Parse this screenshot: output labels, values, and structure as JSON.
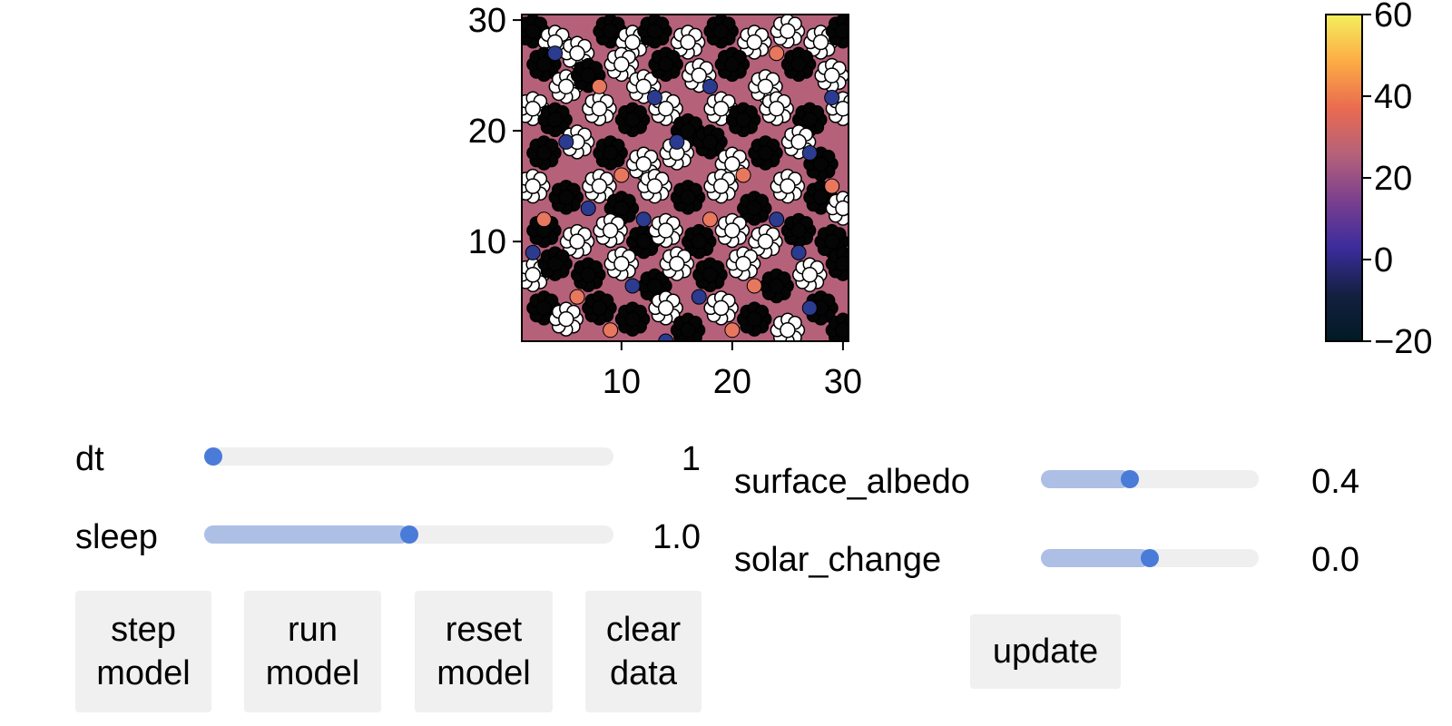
{
  "chart_data": [
    {
      "type": "scatter",
      "title": "",
      "xlabel": "",
      "ylabel": "",
      "xlim": [
        1,
        30.5
      ],
      "ylim": [
        1,
        30.5
      ],
      "xticks": [
        "10",
        "20",
        "30"
      ],
      "yticks": [
        "10",
        "20",
        "30"
      ],
      "xtick_values": [
        10,
        20,
        30
      ],
      "ytick_values": [
        10,
        20,
        30
      ],
      "background_color": "#b5617a",
      "grid": false,
      "legend": "none",
      "series": [
        {
          "marker": "daisy-flower",
          "points": [
            [
              2,
              29,
              "black"
            ],
            [
              4,
              28,
              "white"
            ],
            [
              6,
              27,
              "white"
            ],
            [
              9,
              29,
              "black"
            ],
            [
              11,
              28,
              "white"
            ],
            [
              13,
              29,
              "black"
            ],
            [
              16,
              28,
              "white"
            ],
            [
              19,
              29,
              "black"
            ],
            [
              22,
              28,
              "white"
            ],
            [
              25,
              29,
              "white"
            ],
            [
              28,
              28,
              "white"
            ],
            [
              30,
              29,
              "black"
            ],
            [
              3,
              26,
              "black"
            ],
            [
              5,
              24,
              "white"
            ],
            [
              7,
              25,
              "black"
            ],
            [
              10,
              26,
              "white"
            ],
            [
              12,
              24,
              "white"
            ],
            [
              14,
              26,
              "black"
            ],
            [
              17,
              25,
              "white"
            ],
            [
              20,
              26,
              "black"
            ],
            [
              23,
              24,
              "white"
            ],
            [
              26,
              26,
              "black"
            ],
            [
              29,
              25,
              "white"
            ],
            [
              2,
              22,
              "white"
            ],
            [
              4,
              21,
              "black"
            ],
            [
              8,
              22,
              "white"
            ],
            [
              11,
              21,
              "black"
            ],
            [
              14,
              22,
              "white"
            ],
            [
              16,
              20,
              "black"
            ],
            [
              19,
              22,
              "white"
            ],
            [
              21,
              21,
              "black"
            ],
            [
              24,
              22,
              "white"
            ],
            [
              27,
              21,
              "black"
            ],
            [
              30,
              22,
              "white"
            ],
            [
              3,
              18,
              "black"
            ],
            [
              6,
              19,
              "white"
            ],
            [
              9,
              18,
              "black"
            ],
            [
              12,
              17,
              "white"
            ],
            [
              15,
              18,
              "white"
            ],
            [
              18,
              19,
              "black"
            ],
            [
              20,
              17,
              "white"
            ],
            [
              23,
              18,
              "black"
            ],
            [
              26,
              19,
              "white"
            ],
            [
              28,
              17,
              "black"
            ],
            [
              2,
              15,
              "white"
            ],
            [
              5,
              14,
              "black"
            ],
            [
              8,
              15,
              "white"
            ],
            [
              10,
              13,
              "black"
            ],
            [
              13,
              15,
              "white"
            ],
            [
              16,
              14,
              "black"
            ],
            [
              19,
              15,
              "white"
            ],
            [
              22,
              13,
              "black"
            ],
            [
              25,
              15,
              "white"
            ],
            [
              28,
              14,
              "black"
            ],
            [
              30,
              13,
              "white"
            ],
            [
              3,
              11,
              "black"
            ],
            [
              6,
              10,
              "white"
            ],
            [
              9,
              11,
              "white"
            ],
            [
              12,
              10,
              "black"
            ],
            [
              14,
              11,
              "white"
            ],
            [
              17,
              10,
              "black"
            ],
            [
              20,
              11,
              "white"
            ],
            [
              23,
              10,
              "white"
            ],
            [
              26,
              11,
              "black"
            ],
            [
              29,
              10,
              "black"
            ],
            [
              2,
              7,
              "white"
            ],
            [
              4,
              8,
              "black"
            ],
            [
              7,
              7,
              "black"
            ],
            [
              10,
              8,
              "white"
            ],
            [
              13,
              6,
              "black"
            ],
            [
              15,
              8,
              "white"
            ],
            [
              18,
              7,
              "black"
            ],
            [
              21,
              8,
              "white"
            ],
            [
              24,
              6,
              "black"
            ],
            [
              27,
              7,
              "white"
            ],
            [
              30,
              8,
              "black"
            ],
            [
              3,
              4,
              "black"
            ],
            [
              5,
              3,
              "white"
            ],
            [
              8,
              4,
              "black"
            ],
            [
              11,
              3,
              "black"
            ],
            [
              14,
              4,
              "white"
            ],
            [
              16,
              2,
              "black"
            ],
            [
              19,
              4,
              "white"
            ],
            [
              22,
              3,
              "black"
            ],
            [
              25,
              2,
              "white"
            ],
            [
              28,
              4,
              "black"
            ],
            [
              30,
              2,
              "black"
            ]
          ]
        },
        {
          "marker": "circle",
          "points": [
            [
              4,
              27,
              "blue"
            ],
            [
              8,
              24,
              "orange"
            ],
            [
              13,
              23,
              "blue"
            ],
            [
              18,
              24,
              "blue"
            ],
            [
              24,
              27,
              "orange"
            ],
            [
              29,
              23,
              "blue"
            ],
            [
              5,
              19,
              "blue"
            ],
            [
              10,
              16,
              "orange"
            ],
            [
              15,
              19,
              "blue"
            ],
            [
              21,
              16,
              "orange"
            ],
            [
              27,
              18,
              "blue"
            ],
            [
              3,
              12,
              "orange"
            ],
            [
              7,
              13,
              "blue"
            ],
            [
              12,
              12,
              "blue"
            ],
            [
              18,
              12,
              "orange"
            ],
            [
              24,
              12,
              "blue"
            ],
            [
              29,
              15,
              "orange"
            ],
            [
              2,
              9,
              "blue"
            ],
            [
              6,
              5,
              "orange"
            ],
            [
              11,
              6,
              "blue"
            ],
            [
              17,
              5,
              "blue"
            ],
            [
              22,
              6,
              "orange"
            ],
            [
              27,
              4,
              "blue"
            ],
            [
              9,
              2,
              "orange"
            ],
            [
              14,
              1,
              "blue"
            ],
            [
              20,
              2,
              "orange"
            ],
            [
              26,
              9,
              "blue"
            ]
          ]
        }
      ]
    },
    {
      "type": "colorbar",
      "ticks": [
        "60",
        "40",
        "20",
        "0",
        "−20"
      ],
      "tick_values": [
        60,
        40,
        20,
        0,
        -20
      ],
      "range": [
        -20,
        60
      ],
      "colors": [
        "#f3ef5e",
        "#fdac45",
        "#ea6b4f",
        "#b5617a",
        "#7a3f8e",
        "#3b2c9c",
        "#132040",
        "#011a24"
      ]
    }
  ],
  "colors": {
    "daisy_black": "#050505",
    "daisy_white": "#ffffff",
    "blue_marker": "#2b3b8f",
    "orange_marker": "#e7785e",
    "slider_track": "#efefef",
    "slider_fill": "#adbfe5",
    "slider_knob": "#4a7bd8",
    "button_bg": "#f0f0f0"
  },
  "controls": {
    "left_sliders": [
      {
        "label": "dt",
        "value": "1",
        "fraction": 0.0
      },
      {
        "label": "sleep",
        "value": "1.0",
        "fraction": 0.5
      }
    ],
    "right_sliders": [
      {
        "label": "surface_albedo",
        "value": "0.4",
        "fraction": 0.41
      },
      {
        "label": "solar_change",
        "value": "0.0",
        "fraction": 0.5
      }
    ],
    "buttons": [
      {
        "label": "step\nmodel"
      },
      {
        "label": "run\nmodel"
      },
      {
        "label": "reset\nmodel"
      },
      {
        "label": "clear\ndata"
      }
    ],
    "update_button": "update"
  }
}
